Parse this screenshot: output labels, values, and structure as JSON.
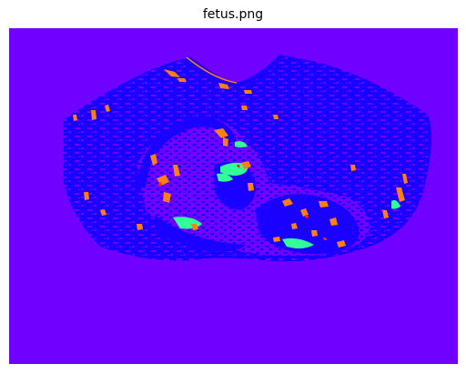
{
  "figure": {
    "title": "fetus.png"
  },
  "colors": {
    "background": "#7000ff",
    "tissue_low": "#1a00ff",
    "tissue_mid": "#ff7f12",
    "tissue_high": "#33ff99",
    "edge": "#ff2a00"
  }
}
